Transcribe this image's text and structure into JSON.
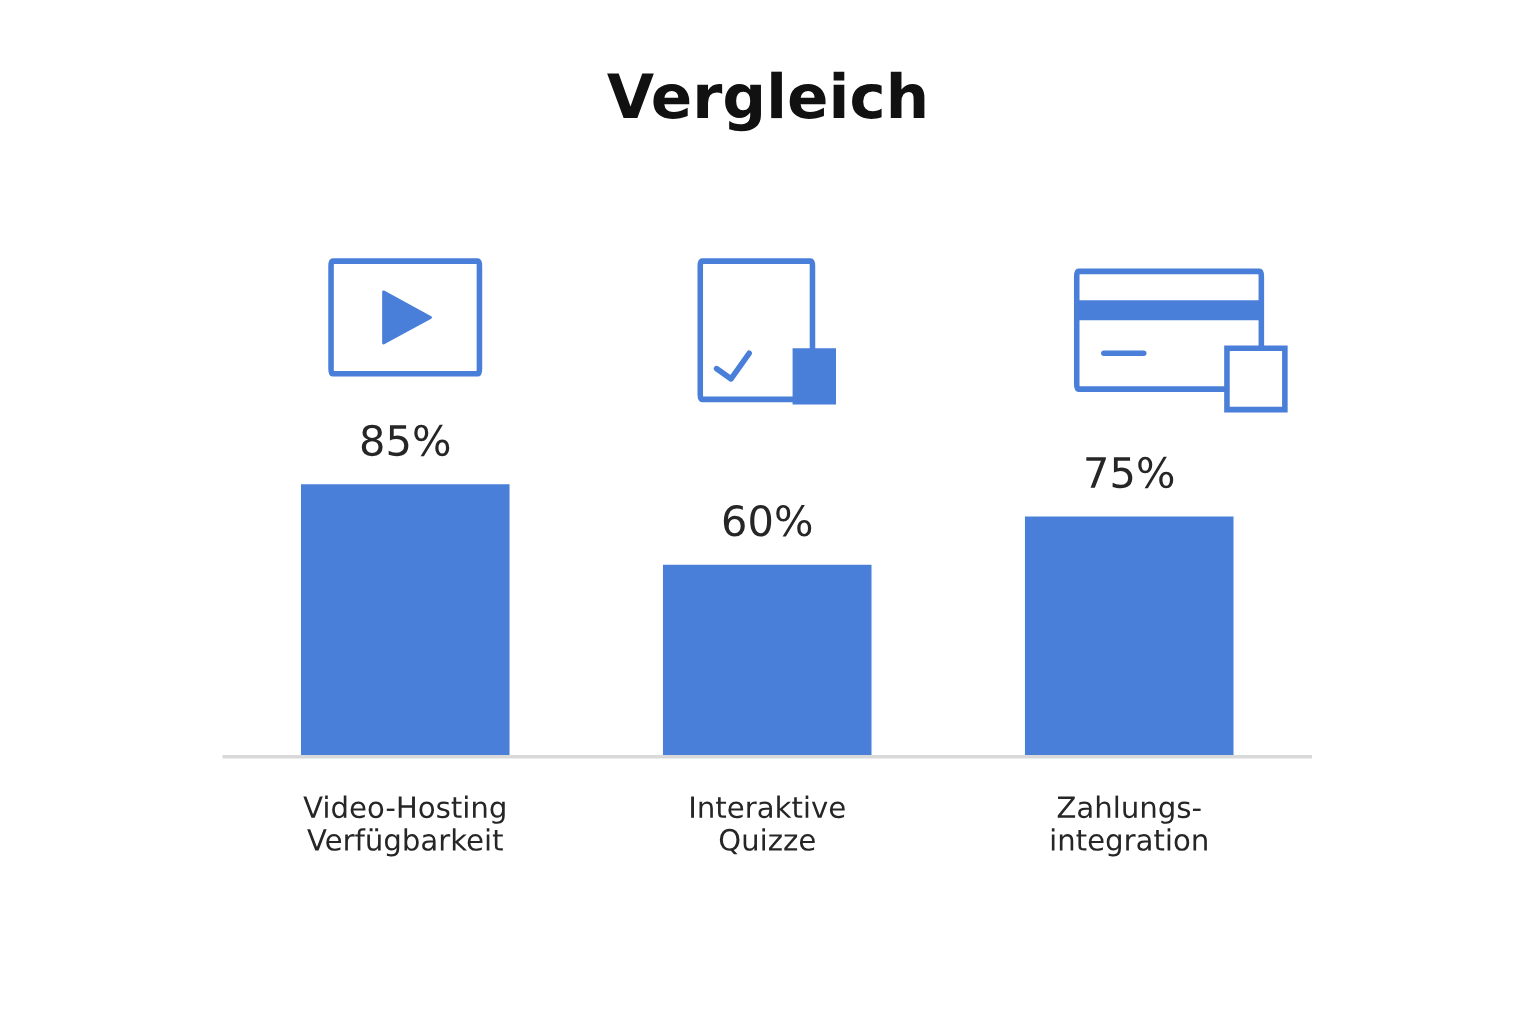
{
  "chart_data": {
    "type": "bar",
    "title": "Vergleich",
    "categories": [
      "Video-Hosting\nVerfügbarkeit",
      "Interaktive\nQuizze",
      "Zahlungs-\nintegration"
    ],
    "values": [
      85,
      60,
      75
    ],
    "color": "#4a7fd9",
    "value_labels": [
      "85%",
      "60%",
      "75%"
    ],
    "grid": false,
    "legend": false
  }
}
